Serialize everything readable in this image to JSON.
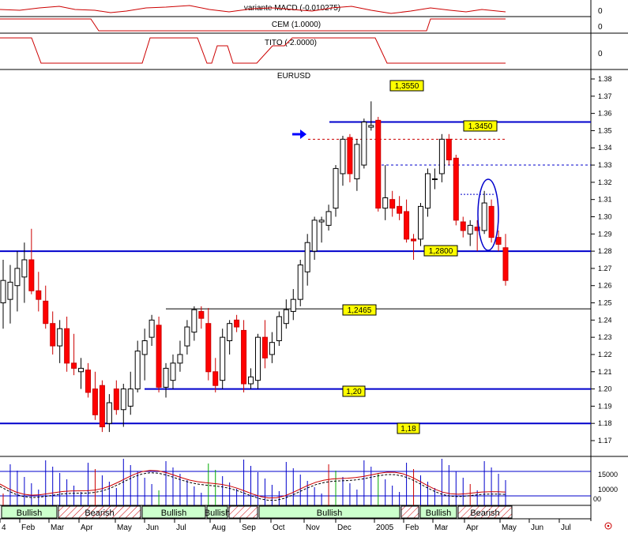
{
  "panels": {
    "macd": {
      "title": "variante MACD (-0.010275)",
      "axis_label": "0"
    },
    "cem": {
      "title": "CEM (1.0000)",
      "axis_label": "0"
    },
    "tito": {
      "title": "TITO (-2.0000)",
      "axis_label": "0"
    },
    "main": {
      "title": "EURUSD"
    }
  },
  "chart_data": {
    "type": "candlestick",
    "title": "EURUSD",
    "ylim": [
      1.16,
      1.385
    ],
    "y_ticks": [
      "1.38",
      "1.37",
      "1.36",
      "1.35",
      "1.34",
      "1.33",
      "1.32",
      "1.31",
      "1.30",
      "1.29",
      "1.28",
      "1.27",
      "1.26",
      "1.25",
      "1.24",
      "1.23",
      "1.22",
      "1.21",
      "1.20",
      "1.19",
      "1.18",
      "1.17"
    ],
    "x_labels": [
      "4",
      "Feb",
      "Mar",
      "Apr",
      "May",
      "Jun",
      "Jul",
      "Aug",
      "Sep",
      "Oct",
      "Nov",
      "Dec",
      "2005",
      "Feb",
      "Mar",
      "Apr",
      "May",
      "Jun",
      "Jul"
    ],
    "candles": [
      {
        "o": 1.25,
        "h": 1.275,
        "l": 1.235,
        "c": 1.263
      },
      {
        "o": 1.252,
        "h": 1.272,
        "l": 1.238,
        "c": 1.262
      },
      {
        "o": 1.26,
        "h": 1.28,
        "l": 1.245,
        "c": 1.27
      },
      {
        "o": 1.265,
        "h": 1.285,
        "l": 1.25,
        "c": 1.275
      },
      {
        "o": 1.275,
        "h": 1.293,
        "l": 1.255,
        "c": 1.257
      },
      {
        "o": 1.257,
        "h": 1.268,
        "l": 1.245,
        "c": 1.252
      },
      {
        "o": 1.251,
        "h": 1.26,
        "l": 1.235,
        "c": 1.238
      },
      {
        "o": 1.238,
        "h": 1.245,
        "l": 1.22,
        "c": 1.225
      },
      {
        "o": 1.225,
        "h": 1.24,
        "l": 1.215,
        "c": 1.235
      },
      {
        "o": 1.235,
        "h": 1.242,
        "l": 1.21,
        "c": 1.215
      },
      {
        "o": 1.215,
        "h": 1.232,
        "l": 1.208,
        "c": 1.212
      },
      {
        "o": 1.21,
        "h": 1.218,
        "l": 1.2,
        "c": 1.212
      },
      {
        "o": 1.211,
        "h": 1.215,
        "l": 1.195,
        "c": 1.198
      },
      {
        "o": 1.2,
        "h": 1.21,
        "l": 1.182,
        "c": 1.185
      },
      {
        "o": 1.202,
        "h": 1.205,
        "l": 1.175,
        "c": 1.178
      },
      {
        "o": 1.18,
        "h": 1.197,
        "l": 1.175,
        "c": 1.192
      },
      {
        "o": 1.2,
        "h": 1.205,
        "l": 1.185,
        "c": 1.188
      },
      {
        "o": 1.188,
        "h": 1.203,
        "l": 1.178,
        "c": 1.2
      },
      {
        "o": 1.19,
        "h": 1.21,
        "l": 1.185,
        "c": 1.2
      },
      {
        "o": 1.2,
        "h": 1.228,
        "l": 1.198,
        "c": 1.222
      },
      {
        "o": 1.22,
        "h": 1.235,
        "l": 1.205,
        "c": 1.228
      },
      {
        "o": 1.23,
        "h": 1.243,
        "l": 1.225,
        "c": 1.24
      },
      {
        "o": 1.237,
        "h": 1.242,
        "l": 1.198,
        "c": 1.201
      },
      {
        "o": 1.201,
        "h": 1.215,
        "l": 1.195,
        "c": 1.212
      },
      {
        "o": 1.205,
        "h": 1.22,
        "l": 1.2,
        "c": 1.215
      },
      {
        "o": 1.215,
        "h": 1.228,
        "l": 1.21,
        "c": 1.22
      },
      {
        "o": 1.225,
        "h": 1.24,
        "l": 1.22,
        "c": 1.236
      },
      {
        "o": 1.233,
        "h": 1.248,
        "l": 1.228,
        "c": 1.246
      },
      {
        "o": 1.245,
        "h": 1.248,
        "l": 1.235,
        "c": 1.241
      },
      {
        "o": 1.238,
        "h": 1.247,
        "l": 1.205,
        "c": 1.21
      },
      {
        "o": 1.21,
        "h": 1.218,
        "l": 1.198,
        "c": 1.202
      },
      {
        "o": 1.205,
        "h": 1.235,
        "l": 1.2,
        "c": 1.23
      },
      {
        "o": 1.228,
        "h": 1.24,
        "l": 1.22,
        "c": 1.238
      },
      {
        "o": 1.24,
        "h": 1.243,
        "l": 1.233,
        "c": 1.236
      },
      {
        "o": 1.234,
        "h": 1.24,
        "l": 1.198,
        "c": 1.203
      },
      {
        "o": 1.203,
        "h": 1.212,
        "l": 1.2,
        "c": 1.207
      },
      {
        "o": 1.205,
        "h": 1.232,
        "l": 1.2,
        "c": 1.23
      },
      {
        "o": 1.23,
        "h": 1.24,
        "l": 1.212,
        "c": 1.218
      },
      {
        "o": 1.22,
        "h": 1.233,
        "l": 1.215,
        "c": 1.227
      },
      {
        "o": 1.228,
        "h": 1.245,
        "l": 1.225,
        "c": 1.242
      },
      {
        "o": 1.238,
        "h": 1.252,
        "l": 1.235,
        "c": 1.246
      },
      {
        "o": 1.245,
        "h": 1.258,
        "l": 1.24,
        "c": 1.252
      },
      {
        "o": 1.252,
        "h": 1.275,
        "l": 1.248,
        "c": 1.272
      },
      {
        "o": 1.268,
        "h": 1.29,
        "l": 1.26,
        "c": 1.285
      },
      {
        "o": 1.28,
        "h": 1.3,
        "l": 1.275,
        "c": 1.298
      },
      {
        "o": 1.297,
        "h": 1.3,
        "l": 1.285,
        "c": 1.298
      },
      {
        "o": 1.295,
        "h": 1.307,
        "l": 1.292,
        "c": 1.303
      },
      {
        "o": 1.305,
        "h": 1.33,
        "l": 1.3,
        "c": 1.328
      },
      {
        "o": 1.325,
        "h": 1.347,
        "l": 1.318,
        "c": 1.345
      },
      {
        "o": 1.346,
        "h": 1.348,
        "l": 1.32,
        "c": 1.325
      },
      {
        "o": 1.322,
        "h": 1.345,
        "l": 1.315,
        "c": 1.342
      },
      {
        "o": 1.33,
        "h": 1.357,
        "l": 1.328,
        "c": 1.355
      },
      {
        "o": 1.352,
        "h": 1.367,
        "l": 1.35,
        "c": 1.353
      },
      {
        "o": 1.356,
        "h": 1.358,
        "l": 1.303,
        "c": 1.305
      },
      {
        "o": 1.305,
        "h": 1.33,
        "l": 1.298,
        "c": 1.311
      },
      {
        "o": 1.31,
        "h": 1.315,
        "l": 1.3,
        "c": 1.305
      },
      {
        "o": 1.306,
        "h": 1.312,
        "l": 1.298,
        "c": 1.302
      },
      {
        "o": 1.303,
        "h": 1.31,
        "l": 1.285,
        "c": 1.287
      },
      {
        "o": 1.287,
        "h": 1.29,
        "l": 1.275,
        "c": 1.286
      },
      {
        "o": 1.287,
        "h": 1.308,
        "l": 1.283,
        "c": 1.306
      },
      {
        "o": 1.305,
        "h": 1.328,
        "l": 1.3,
        "c": 1.325
      },
      {
        "o": 1.322,
        "h": 1.328,
        "l": 1.316,
        "c": 1.322
      },
      {
        "o": 1.325,
        "h": 1.348,
        "l": 1.32,
        "c": 1.345
      },
      {
        "o": 1.345,
        "h": 1.348,
        "l": 1.33,
        "c": 1.333
      },
      {
        "o": 1.334,
        "h": 1.336,
        "l": 1.295,
        "c": 1.298
      },
      {
        "o": 1.297,
        "h": 1.3,
        "l": 1.288,
        "c": 1.292
      },
      {
        "o": 1.29,
        "h": 1.298,
        "l": 1.283,
        "c": 1.295
      },
      {
        "o": 1.294,
        "h": 1.298,
        "l": 1.28,
        "c": 1.292
      },
      {
        "o": 1.292,
        "h": 1.315,
        "l": 1.29,
        "c": 1.308
      },
      {
        "o": 1.306,
        "h": 1.31,
        "l": 1.285,
        "c": 1.288
      },
      {
        "o": 1.288,
        "h": 1.292,
        "l": 1.28,
        "c": 1.284
      },
      {
        "o": 1.282,
        "h": 1.29,
        "l": 1.26,
        "c": 1.263
      }
    ],
    "levels": [
      {
        "label": "1,3550",
        "value": 1.355
      },
      {
        "label": "1,3450",
        "value": 1.345
      },
      {
        "label": "1,2800",
        "value": 1.28
      },
      {
        "label": "1,2465",
        "value": 1.2465
      },
      {
        "label": "1,20",
        "value": 1.2
      },
      {
        "label": "1,18",
        "value": 1.18
      }
    ],
    "level_tag_3550": "1,3550",
    "level_tag_3450": "1,3450",
    "level_tag_2800": "1,2800",
    "level_tag_2465": "1,2465",
    "level_tag_120": "1,20",
    "level_tag_118": "1,18",
    "dashed_level": 1.33,
    "dashed_level_short": 1.313,
    "volume_axis": {
      "ticks": [
        "15000",
        "10000"
      ],
      "corner": "00"
    },
    "regimes": [
      {
        "label": "Bullish",
        "type": "bullish"
      },
      {
        "label": "Bearish",
        "type": "bearish"
      },
      {
        "label": "Bullish",
        "type": "bullish"
      },
      {
        "label": "Bullish",
        "type": "bullish"
      },
      {
        "label": "Bullish",
        "type": "bullish"
      },
      {
        "label": "Bearish",
        "type": "bearish"
      }
    ]
  },
  "colors": {
    "up_candle": "#ffffff",
    "down_candle": "#ff0000",
    "support_line": "#0000cc",
    "resistance_dashed": "#cc0000",
    "label_bg": "#ffff00",
    "indicator_line": "#cc0000",
    "bullish_fill": "#ccffcc",
    "bearish_fill": "#ffcccc"
  }
}
